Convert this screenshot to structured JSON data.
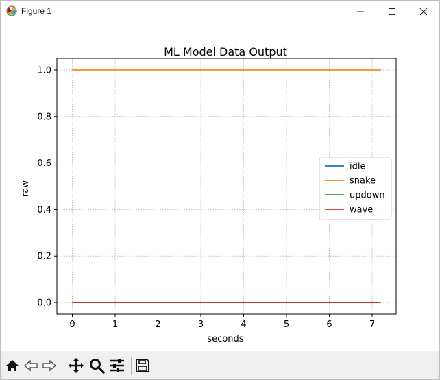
{
  "window": {
    "title": "Figure 1",
    "minimize_icon": "minimize-icon",
    "maximize_icon": "maximize-icon",
    "close_icon": "close-icon"
  },
  "toolbar": {
    "buttons": [
      {
        "icon": "home-icon",
        "label": "Home"
      },
      {
        "icon": "back-arrow-icon",
        "label": "Back"
      },
      {
        "icon": "forward-arrow-icon",
        "label": "Forward"
      },
      {
        "icon": "pan-move-icon",
        "label": "Pan"
      },
      {
        "icon": "zoom-magnifier-icon",
        "label": "Zoom"
      },
      {
        "icon": "configure-subplots-icon",
        "label": "Configure subplots"
      },
      {
        "icon": "save-floppy-icon",
        "label": "Save"
      }
    ]
  },
  "colors": {
    "idle": "#1f77b4",
    "snake": "#ff7f0e",
    "updown": "#2ca02c",
    "wave": "#d62728",
    "grid": "#b0b0b0",
    "toolbar_bg": "#f0f0f0"
  },
  "chart_data": {
    "type": "line",
    "title": "ML Model Data Output",
    "xlabel": "seconds",
    "ylabel": "raw",
    "xlim": [
      -0.36,
      7.56
    ],
    "ylim": [
      -0.05,
      1.05
    ],
    "xticks": [
      "0",
      "1",
      "2",
      "3",
      "4",
      "5",
      "6",
      "7"
    ],
    "yticks": [
      "0.0",
      "0.2",
      "0.4",
      "0.6",
      "0.8",
      "1.0"
    ],
    "grid": true,
    "grid_style": "dotted",
    "legend_position": "center-right",
    "series": [
      {
        "name": "idle",
        "x": [
          0,
          7.2
        ],
        "y": [
          0,
          0
        ]
      },
      {
        "name": "snake",
        "x": [
          0,
          7.2
        ],
        "y": [
          1,
          1
        ]
      },
      {
        "name": "updown",
        "x": [
          0,
          7.2
        ],
        "y": [
          0,
          0
        ]
      },
      {
        "name": "wave",
        "x": [
          0,
          7.2
        ],
        "y": [
          0,
          0
        ]
      }
    ]
  }
}
